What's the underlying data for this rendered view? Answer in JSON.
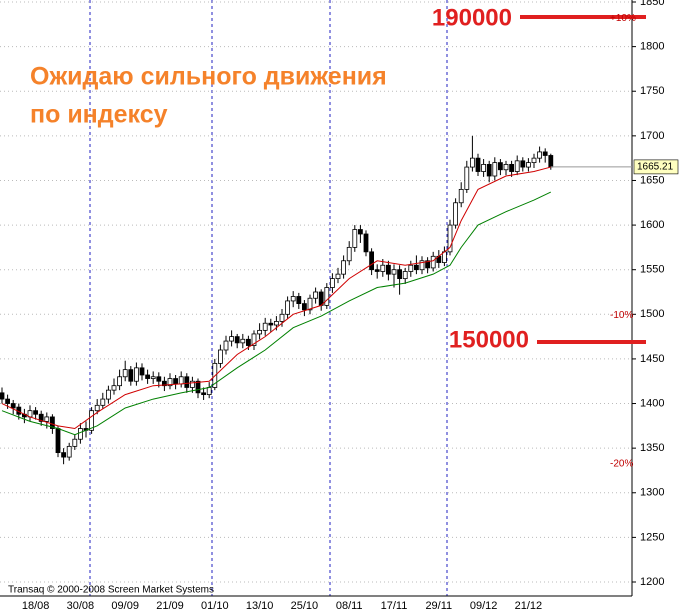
{
  "chart_data": {
    "type": "candlestick",
    "categories": [
      null,
      null,
      null,
      null,
      null,
      null,
      "18/08",
      null,
      null,
      null,
      null,
      null,
      null,
      null,
      "30/08",
      null,
      null,
      null,
      null,
      null,
      null,
      null,
      "09/09",
      null,
      null,
      null,
      null,
      null,
      null,
      null,
      "21/09",
      null,
      null,
      null,
      null,
      null,
      null,
      null,
      "01/10",
      null,
      null,
      null,
      null,
      null,
      null,
      null,
      "13/10",
      null,
      null,
      null,
      null,
      null,
      null,
      null,
      "25/10",
      null,
      null,
      null,
      null,
      null,
      null,
      null,
      "08/11",
      null,
      null,
      null,
      null,
      null,
      null,
      null,
      "17/11",
      null,
      null,
      null,
      null,
      null,
      null,
      null,
      "29/11",
      null,
      null,
      null,
      null,
      null,
      null,
      null,
      "09/12",
      null,
      null,
      null,
      null,
      null,
      null,
      null,
      "21/12",
      null,
      null,
      null,
      null
    ],
    "open": [
      1412,
      1405,
      1400,
      1396,
      1388,
      1385,
      1392,
      1388,
      1380,
      1385,
      1372,
      1345,
      1340,
      1352,
      1360,
      1372,
      1370,
      1392,
      1398,
      1405,
      1415,
      1420,
      1430,
      1438,
      1425,
      1440,
      1432,
      1428,
      1430,
      1425,
      1420,
      1428,
      1422,
      1430,
      1418,
      1425,
      1412,
      1410,
      1418,
      1445,
      1460,
      1470,
      1475,
      1468,
      1472,
      1465,
      1478,
      1482,
      1490,
      1488,
      1492,
      1500,
      1515,
      1520,
      1512,
      1505,
      1518,
      1525,
      1510,
      1530,
      1540,
      1545,
      1560,
      1575,
      1595,
      1590,
      1570,
      1550,
      1548,
      1555,
      1545,
      1550,
      1540,
      1548,
      1555,
      1550,
      1560,
      1552,
      1565,
      1558,
      1570,
      1600,
      1625,
      1640,
      1665,
      1675,
      1660,
      1668,
      1655,
      1670,
      1662,
      1668,
      1660,
      1672,
      1665,
      1670,
      1675,
      1682,
      1678
    ],
    "high": [
      1418,
      1410,
      1404,
      1400,
      1394,
      1398,
      1396,
      1392,
      1390,
      1388,
      1375,
      1350,
      1356,
      1365,
      1378,
      1380,
      1396,
      1405,
      1412,
      1420,
      1428,
      1438,
      1448,
      1442,
      1446,
      1445,
      1438,
      1436,
      1435,
      1430,
      1434,
      1432,
      1436,
      1434,
      1430,
      1428,
      1418,
      1424,
      1450,
      1466,
      1476,
      1482,
      1478,
      1478,
      1476,
      1482,
      1490,
      1496,
      1495,
      1498,
      1506,
      1520,
      1526,
      1524,
      1516,
      1522,
      1530,
      1528,
      1535,
      1546,
      1552,
      1566,
      1582,
      1600,
      1600,
      1594,
      1574,
      1556,
      1562,
      1560,
      1556,
      1555,
      1552,
      1560,
      1566,
      1565,
      1564,
      1570,
      1572,
      1576,
      1606,
      1630,
      1648,
      1672,
      1700,
      1680,
      1674,
      1672,
      1676,
      1674,
      1672,
      1672,
      1678,
      1676,
      1675,
      1680,
      1688,
      1686,
      1680
    ],
    "low": [
      1400,
      1394,
      1388,
      1382,
      1378,
      1380,
      1382,
      1375,
      1372,
      1366,
      1340,
      1332,
      1336,
      1348,
      1355,
      1362,
      1366,
      1388,
      1394,
      1400,
      1410,
      1415,
      1425,
      1420,
      1420,
      1426,
      1422,
      1422,
      1418,
      1414,
      1416,
      1416,
      1418,
      1412,
      1412,
      1406,
      1404,
      1406,
      1415,
      1440,
      1455,
      1464,
      1462,
      1462,
      1460,
      1460,
      1472,
      1476,
      1480,
      1482,
      1486,
      1495,
      1508,
      1506,
      1498,
      1500,
      1512,
      1504,
      1506,
      1524,
      1535,
      1540,
      1555,
      1570,
      1580,
      1565,
      1544,
      1540,
      1542,
      1538,
      1530,
      1522,
      1534,
      1542,
      1545,
      1545,
      1546,
      1548,
      1552,
      1554,
      1566,
      1596,
      1620,
      1636,
      1660,
      1655,
      1654,
      1648,
      1650,
      1656,
      1656,
      1654,
      1656,
      1660,
      1660,
      1664,
      1670,
      1670,
      1662
    ],
    "close": [
      1405,
      1400,
      1395,
      1388,
      1385,
      1392,
      1388,
      1380,
      1385,
      1372,
      1345,
      1340,
      1352,
      1360,
      1372,
      1370,
      1392,
      1398,
      1405,
      1415,
      1420,
      1430,
      1438,
      1425,
      1440,
      1432,
      1428,
      1430,
      1425,
      1420,
      1428,
      1422,
      1430,
      1418,
      1425,
      1412,
      1410,
      1418,
      1445,
      1460,
      1470,
      1475,
      1468,
      1472,
      1465,
      1478,
      1482,
      1490,
      1488,
      1492,
      1500,
      1515,
      1520,
      1512,
      1505,
      1518,
      1525,
      1510,
      1530,
      1540,
      1545,
      1560,
      1575,
      1595,
      1590,
      1570,
      1550,
      1548,
      1555,
      1545,
      1550,
      1540,
      1548,
      1555,
      1550,
      1560,
      1552,
      1565,
      1558,
      1570,
      1600,
      1625,
      1640,
      1665,
      1675,
      1660,
      1668,
      1655,
      1670,
      1662,
      1668,
      1660,
      1672,
      1665,
      1670,
      1675,
      1682,
      1678,
      1665
    ],
    "series": [
      {
        "color": "#d00000",
        "x": [
          0,
          5,
          10,
          13,
          17,
          22,
          27,
          32,
          37,
          42,
          47,
          52,
          57,
          62,
          67,
          72,
          77,
          80,
          82,
          85,
          90,
          95,
          98
        ],
        "values": [
          1400,
          1385,
          1375,
          1372,
          1390,
          1410,
          1420,
          1422,
          1425,
          1455,
          1475,
          1500,
          1510,
          1540,
          1560,
          1555,
          1560,
          1575,
          1605,
          1640,
          1655,
          1660,
          1665
        ]
      },
      {
        "color": "#008000",
        "x": [
          0,
          5,
          10,
          13,
          17,
          22,
          27,
          32,
          37,
          42,
          47,
          52,
          57,
          62,
          67,
          72,
          77,
          80,
          82,
          85,
          90,
          95,
          98
        ],
        "values": [
          1392,
          1380,
          1372,
          1365,
          1375,
          1395,
          1405,
          1412,
          1418,
          1440,
          1460,
          1485,
          1498,
          1515,
          1530,
          1535,
          1545,
          1555,
          1575,
          1600,
          1615,
          1628,
          1637
        ]
      }
    ],
    "ylim": [
      1200,
      1850
    ],
    "yticks": [
      1200,
      1250,
      1300,
      1350,
      1400,
      1450,
      1500,
      1550,
      1600,
      1650,
      1700,
      1750,
      1800,
      1850
    ],
    "grid": true,
    "price_label": 1665.21,
    "percent_levels": [
      {
        "value": 1831.7,
        "label": "+10%"
      },
      {
        "value": 1498.7,
        "label": "-10%"
      },
      {
        "value": 1332.2,
        "label": "-20%"
      }
    ],
    "annotations": [
      "Ожидаю сильного движения",
      "по индексу",
      "190000",
      "150000"
    ],
    "footer": "Transaq © 2000-2008 Screen Market Systems"
  }
}
